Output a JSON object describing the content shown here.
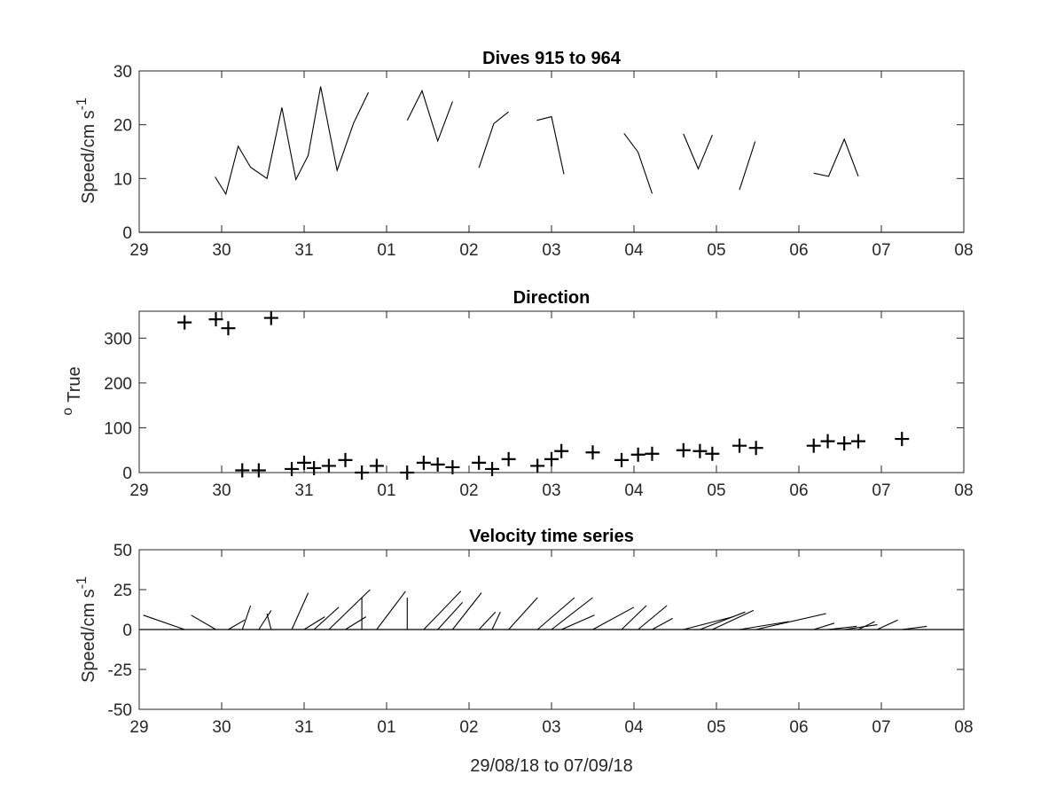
{
  "chart_data": [
    {
      "type": "line",
      "title": "Dives 915 to 964",
      "ylabel": "Speed/cm s",
      "ylabel_sup": "-1",
      "xlim": [
        0,
        10
      ],
      "ylim": [
        0,
        30
      ],
      "xticks": [
        "29",
        "30",
        "31",
        "01",
        "02",
        "03",
        "04",
        "05",
        "06",
        "07",
        "08"
      ],
      "yticks": [
        0,
        10,
        20,
        30
      ],
      "segments": [
        [
          [
            0.92,
            10.3
          ],
          [
            1.05,
            7.1
          ],
          [
            1.2,
            16.0
          ],
          [
            1.35,
            12.1
          ],
          [
            1.55,
            10.0
          ],
          [
            1.73,
            23.2
          ],
          [
            1.9,
            9.8
          ],
          [
            2.05,
            14.3
          ],
          [
            2.2,
            27.1
          ],
          [
            2.4,
            11.5
          ],
          [
            2.6,
            20.3
          ],
          [
            2.78,
            26.0
          ]
        ],
        [
          [
            3.25,
            20.8
          ],
          [
            3.43,
            26.3
          ],
          [
            3.62,
            17.0
          ],
          [
            3.8,
            24.3
          ]
        ],
        [
          [
            4.12,
            12.0
          ],
          [
            4.3,
            20.2
          ],
          [
            4.48,
            22.4
          ]
        ],
        [
          [
            4.82,
            20.8
          ],
          [
            5.0,
            21.5
          ],
          [
            5.15,
            10.8
          ]
        ],
        [
          [
            5.88,
            18.4
          ],
          [
            6.05,
            14.9
          ],
          [
            6.22,
            7.2
          ]
        ],
        [
          [
            6.6,
            18.3
          ],
          [
            6.78,
            11.8
          ],
          [
            6.95,
            18.1
          ]
        ],
        [
          [
            7.28,
            7.9
          ],
          [
            7.47,
            16.9
          ]
        ],
        [
          [
            8.18,
            11.0
          ],
          [
            8.36,
            10.4
          ],
          [
            8.55,
            17.3
          ],
          [
            8.72,
            10.4
          ]
        ]
      ]
    },
    {
      "type": "scatter",
      "title": "Direction",
      "ylabel": "True",
      "ylabel_sup": "o",
      "xlim": [
        0,
        10
      ],
      "ylim": [
        0,
        360
      ],
      "xticks": [
        "29",
        "30",
        "31",
        "01",
        "02",
        "03",
        "04",
        "05",
        "06",
        "07",
        "08"
      ],
      "yticks": [
        0,
        100,
        200,
        300
      ],
      "points": [
        [
          0.55,
          335
        ],
        [
          0.93,
          342
        ],
        [
          1.08,
          322
        ],
        [
          1.6,
          345
        ],
        [
          1.25,
          5
        ],
        [
          1.45,
          5
        ],
        [
          1.85,
          8
        ],
        [
          2.0,
          22
        ],
        [
          2.12,
          10
        ],
        [
          2.3,
          15
        ],
        [
          2.5,
          28
        ],
        [
          2.7,
          0
        ],
        [
          2.88,
          15
        ],
        [
          3.25,
          0
        ],
        [
          3.45,
          22
        ],
        [
          3.62,
          18
        ],
        [
          3.8,
          12
        ],
        [
          4.12,
          22
        ],
        [
          4.28,
          8
        ],
        [
          4.48,
          30
        ],
        [
          4.83,
          15
        ],
        [
          5.0,
          30
        ],
        [
          5.12,
          48
        ],
        [
          5.5,
          45
        ],
        [
          5.85,
          28
        ],
        [
          6.05,
          40
        ],
        [
          6.22,
          42
        ],
        [
          6.6,
          50
        ],
        [
          6.8,
          48
        ],
        [
          6.95,
          42
        ],
        [
          7.28,
          60
        ],
        [
          7.48,
          55
        ],
        [
          8.18,
          60
        ],
        [
          8.35,
          70
        ],
        [
          8.55,
          65
        ],
        [
          8.72,
          70
        ],
        [
          9.25,
          75
        ]
      ]
    },
    {
      "type": "stick",
      "title": "Velocity time series",
      "ylabel": "Speed/cm s",
      "ylabel_sup": "-1",
      "xlabel": "29/08/18 to 07/09/18",
      "xlim": [
        0,
        10
      ],
      "ylim": [
        -50,
        50
      ],
      "xticks": [
        "29",
        "30",
        "31",
        "01",
        "02",
        "03",
        "04",
        "05",
        "06",
        "07",
        "08"
      ],
      "yticks": [
        50,
        25,
        0,
        -25,
        -50
      ],
      "sticks": [
        [
          0.55,
          -0.5,
          0.0,
          9
        ],
        [
          0.93,
          -0.3,
          0.0,
          9
        ],
        [
          1.08,
          0.2,
          0.0,
          6
        ],
        [
          1.25,
          0.1,
          0.0,
          15
        ],
        [
          1.45,
          0.15,
          0.0,
          12
        ],
        [
          1.6,
          -0.05,
          0.0,
          10
        ],
        [
          1.85,
          0.2,
          0.0,
          23
        ],
        [
          2.0,
          0.25,
          0.0,
          8
        ],
        [
          2.12,
          0.3,
          0.0,
          14
        ],
        [
          2.3,
          0.5,
          0.0,
          25
        ],
        [
          2.5,
          0.25,
          0.0,
          8
        ],
        [
          2.7,
          0.0,
          0.0,
          20
        ],
        [
          2.88,
          0.35,
          0.0,
          24
        ],
        [
          3.25,
          0.0,
          0.0,
          20
        ],
        [
          3.45,
          0.45,
          0.0,
          24
        ],
        [
          3.62,
          0.3,
          0.0,
          17
        ],
        [
          3.8,
          0.35,
          0.0,
          23
        ],
        [
          4.12,
          0.2,
          0.0,
          11
        ],
        [
          4.28,
          0.1,
          0.0,
          11
        ],
        [
          4.48,
          0.35,
          0.0,
          20
        ],
        [
          4.83,
          0.45,
          0.0,
          20
        ],
        [
          5.0,
          0.5,
          0.0,
          20
        ],
        [
          5.12,
          0.4,
          0.0,
          9
        ],
        [
          5.5,
          0.5,
          0.0,
          14
        ],
        [
          5.85,
          0.3,
          0.0,
          15
        ],
        [
          6.05,
          0.35,
          0.0,
          15
        ],
        [
          6.22,
          0.25,
          0.0,
          7
        ],
        [
          6.6,
          0.6,
          0.0,
          8
        ],
        [
          6.8,
          0.55,
          0.0,
          11
        ],
        [
          6.95,
          0.5,
          0.0,
          12
        ],
        [
          7.28,
          0.6,
          0.0,
          5
        ],
        [
          7.48,
          0.85,
          0.0,
          10
        ],
        [
          8.18,
          0.25,
          0.0,
          4
        ],
        [
          8.35,
          0.35,
          0.0,
          2
        ],
        [
          8.55,
          0.4,
          0.0,
          3
        ],
        [
          8.72,
          0.2,
          0.0,
          5
        ],
        [
          8.95,
          0.25,
          0.0,
          6
        ],
        [
          9.25,
          0.3,
          0.0,
          2
        ]
      ]
    }
  ]
}
